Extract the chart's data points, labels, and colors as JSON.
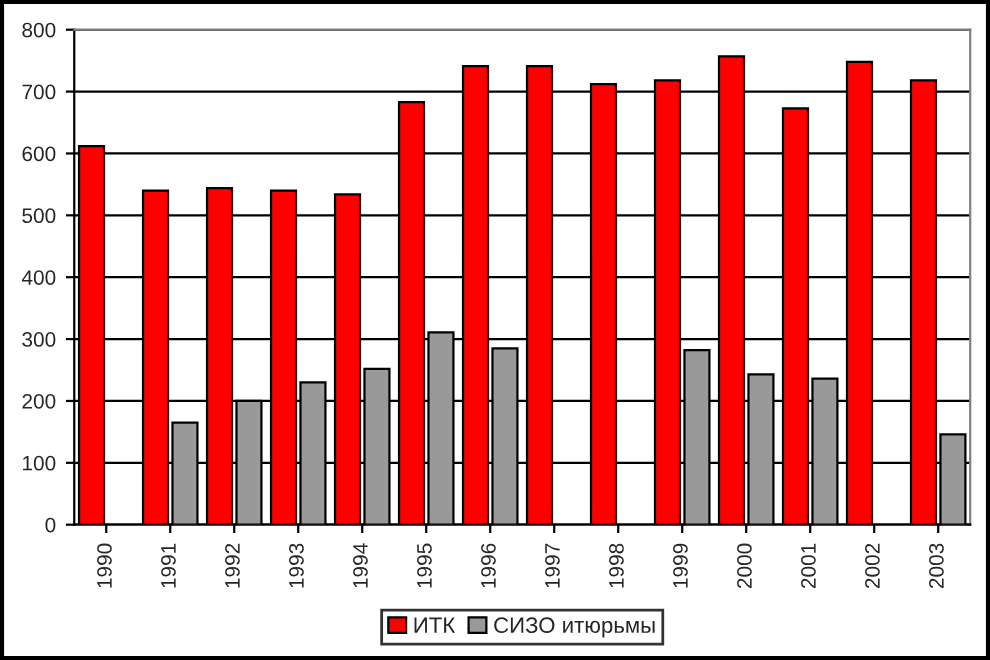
{
  "chart_data": {
    "type": "bar",
    "categories": [
      "1990",
      "1991",
      "1992",
      "1993",
      "1994",
      "1995",
      "1996",
      "1997",
      "1998",
      "1999",
      "2000",
      "2001",
      "2002",
      "2003"
    ],
    "series": [
      {
        "name": "ИТК",
        "color": "#ff0000",
        "values": [
          612,
          540,
          544,
          540,
          534,
          683,
          741,
          741,
          712,
          718,
          757,
          673,
          748,
          718
        ]
      },
      {
        "name": "СИЗО итюрьмы",
        "color": "#999999",
        "values": [
          null,
          165,
          200,
          230,
          252,
          311,
          285,
          null,
          null,
          282,
          243,
          236,
          null,
          146
        ]
      }
    ],
    "ylim": [
      0,
      800
    ],
    "yticks": [
      0,
      100,
      200,
      300,
      400,
      500,
      600,
      700,
      800
    ],
    "grid": "y",
    "legend": "bottom"
  }
}
